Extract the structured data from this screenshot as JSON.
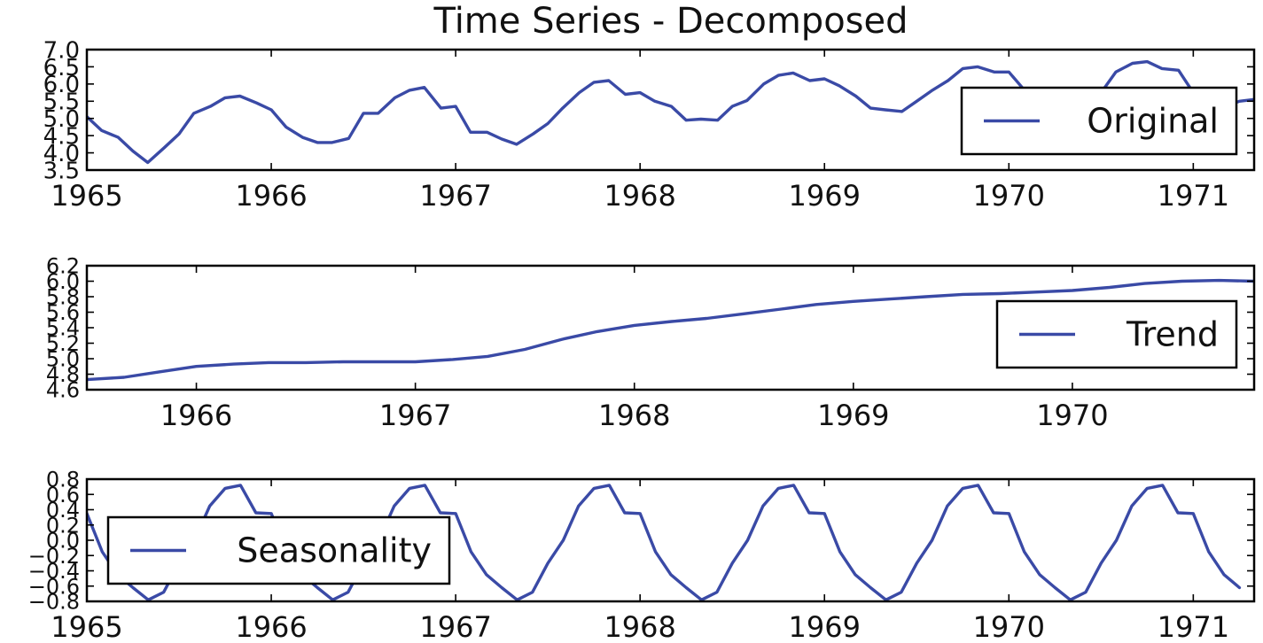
{
  "page": {
    "title": "Time Series - Decomposed"
  },
  "colors": {
    "line": "#3a4aa6",
    "frame": "#000000",
    "background": "#ffffff"
  },
  "chart_data": [
    {
      "type": "line",
      "name": "original",
      "title": "Time Series - Decomposed",
      "xlabel": "",
      "ylabel": "",
      "xlim": [
        1965,
        1971.33
      ],
      "ylim": [
        3.5,
        7.0
      ],
      "x_ticks": [
        1965,
        1966,
        1967,
        1968,
        1969,
        1970,
        1971
      ],
      "x_tick_labels": [
        "1965",
        "1966",
        "1967",
        "1968",
        "1969",
        "1970",
        "1971"
      ],
      "y_ticks": [
        3.5,
        4.0,
        4.5,
        5.0,
        5.5,
        6.0,
        6.5,
        7.0
      ],
      "y_tick_labels": [
        "3.5",
        "4.0",
        "4.5",
        "5.0",
        "5.5",
        "6.0",
        "6.5",
        "7.0"
      ],
      "grid": false,
      "legend": "right",
      "series": [
        {
          "name": "Original",
          "x": [
            1965.0,
            1965.08,
            1965.17,
            1965.25,
            1965.33,
            1965.42,
            1965.5,
            1965.58,
            1965.67,
            1965.75,
            1965.83,
            1965.92,
            1966.0,
            1966.08,
            1966.17,
            1966.25,
            1966.33,
            1966.42,
            1966.5,
            1966.58,
            1966.67,
            1966.75,
            1966.83,
            1966.92,
            1967.0,
            1967.08,
            1967.17,
            1967.25,
            1967.33,
            1967.42,
            1967.5,
            1967.58,
            1967.67,
            1967.75,
            1967.83,
            1967.92,
            1968.0,
            1968.08,
            1968.17,
            1968.25,
            1968.33,
            1968.42,
            1968.5,
            1968.58,
            1968.67,
            1968.75,
            1968.83,
            1968.92,
            1969.0,
            1969.08,
            1969.17,
            1969.25,
            1969.33,
            1969.42,
            1969.5,
            1969.58,
            1969.67,
            1969.75,
            1969.83,
            1969.92,
            1970.0,
            1970.08,
            1970.17,
            1970.25,
            1970.33,
            1970.42,
            1970.5,
            1970.58,
            1970.67,
            1970.75,
            1970.83,
            1970.92,
            1971.0,
            1971.08,
            1971.17,
            1971.25,
            1971.33
          ],
          "values": [
            5.05,
            4.65,
            4.45,
            4.05,
            3.72,
            4.15,
            4.55,
            5.15,
            5.35,
            5.6,
            5.65,
            5.45,
            5.25,
            4.75,
            4.45,
            4.3,
            4.3,
            4.42,
            5.15,
            5.15,
            5.6,
            5.82,
            5.9,
            5.3,
            5.35,
            4.6,
            4.6,
            4.4,
            4.25,
            4.55,
            4.85,
            5.3,
            5.75,
            6.05,
            6.1,
            5.7,
            5.75,
            5.5,
            5.35,
            4.95,
            4.98,
            4.95,
            5.35,
            5.52,
            6.0,
            6.25,
            6.32,
            6.1,
            6.15,
            5.95,
            5.65,
            5.3,
            5.25,
            5.2,
            5.5,
            5.8,
            6.1,
            6.45,
            6.5,
            6.35,
            6.35,
            5.85,
            5.4,
            5.2,
            5.25,
            5.35,
            5.75,
            6.35,
            6.6,
            6.65,
            6.45,
            6.4,
            5.75,
            5.4,
            5.35,
            5.5,
            5.55
          ]
        }
      ]
    },
    {
      "type": "line",
      "name": "trend",
      "title": "",
      "xlabel": "",
      "ylabel": "",
      "xlim": [
        1965.5,
        1970.83
      ],
      "ylim": [
        4.6,
        6.2
      ],
      "x_ticks": [
        1966,
        1967,
        1968,
        1969,
        1970
      ],
      "x_tick_labels": [
        "1966",
        "1967",
        "1968",
        "1969",
        "1970"
      ],
      "y_ticks": [
        4.6,
        4.8,
        5.0,
        5.2,
        5.4,
        5.6,
        5.8,
        6.0,
        6.2
      ],
      "y_tick_labels": [
        "4.6",
        "4.8",
        "5.0",
        "5.2",
        "5.4",
        "5.6",
        "5.8",
        "6.0",
        "6.2"
      ],
      "grid": false,
      "legend": "right",
      "series": [
        {
          "name": "Trend",
          "x": [
            1965.5,
            1965.67,
            1965.83,
            1966.0,
            1966.17,
            1966.33,
            1966.5,
            1966.67,
            1966.83,
            1967.0,
            1967.17,
            1967.33,
            1967.5,
            1967.67,
            1967.83,
            1968.0,
            1968.17,
            1968.33,
            1968.5,
            1968.67,
            1968.83,
            1969.0,
            1969.17,
            1969.33,
            1969.5,
            1969.67,
            1969.83,
            1970.0,
            1970.17,
            1970.33,
            1970.5,
            1970.67,
            1970.83
          ],
          "values": [
            4.73,
            4.76,
            4.83,
            4.9,
            4.93,
            4.95,
            4.95,
            4.96,
            4.96,
            4.96,
            4.99,
            5.03,
            5.12,
            5.25,
            5.35,
            5.43,
            5.48,
            5.52,
            5.58,
            5.64,
            5.7,
            5.74,
            5.77,
            5.8,
            5.83,
            5.84,
            5.86,
            5.88,
            5.92,
            5.97,
            6.0,
            6.01,
            6.0
          ]
        }
      ]
    },
    {
      "type": "line",
      "name": "seasonality",
      "title": "",
      "xlabel": "",
      "ylabel": "",
      "xlim": [
        1965,
        1971.33
      ],
      "ylim": [
        -0.8,
        0.8
      ],
      "x_ticks": [
        1965,
        1966,
        1967,
        1968,
        1969,
        1970,
        1971
      ],
      "x_tick_labels": [
        "1965",
        "1966",
        "1967",
        "1968",
        "1969",
        "1970",
        "1971"
      ],
      "y_ticks": [
        -0.8,
        -0.6,
        -0.4,
        -0.2,
        0.0,
        0.2,
        0.4,
        0.6,
        0.8
      ],
      "y_tick_labels": [
        "−0.8",
        "−0.6",
        "−0.4",
        "−0.2",
        "0.0",
        "0.2",
        "0.4",
        "0.6",
        "0.8"
      ],
      "grid": false,
      "legend": "left",
      "series": [
        {
          "name": "Seasonality",
          "pattern_x_offsets": [
            0,
            0.0833,
            0.1667,
            0.25,
            0.3333,
            0.4167,
            0.5,
            0.5833,
            0.6667,
            0.75,
            0.8333,
            0.9167
          ],
          "pattern_values": [
            0.35,
            -0.15,
            -0.45,
            -0.62,
            -0.78,
            -0.68,
            -0.3,
            0.0,
            0.45,
            0.68,
            0.72,
            0.36
          ],
          "x_start": 1965,
          "x_end": 1971.33
        }
      ]
    }
  ]
}
